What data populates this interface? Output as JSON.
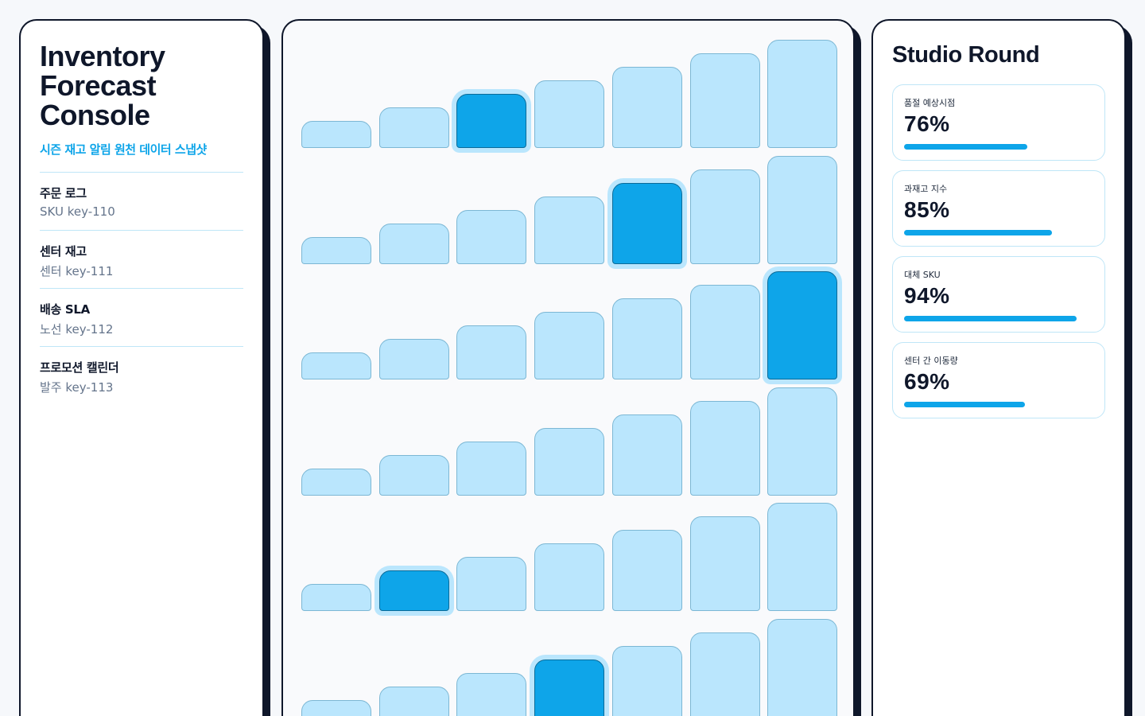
{
  "left_panel": {
    "title_lines": [
      "Inventory",
      "Forecast",
      "Console"
    ],
    "subtitle": "시즌 재고 알림 원천 데이터 스냅샷",
    "feed": [
      {
        "label": "주문 로그",
        "value": "SKU key-110"
      },
      {
        "label": "센터 재고",
        "value": "센터 key-111"
      },
      {
        "label": "배송 SLA",
        "value": "노선 key-112"
      },
      {
        "label": "프로모션 캘린더",
        "value": "발주 key-113"
      }
    ]
  },
  "grid": {
    "columns": 7,
    "rows": 6,
    "highlighted": [
      {
        "row": 0,
        "col": 2
      },
      {
        "row": 1,
        "col": 4
      },
      {
        "row": 2,
        "col": 6
      },
      {
        "row": 4,
        "col": 1
      },
      {
        "row": 5,
        "col": 3
      }
    ],
    "colors": {
      "cell": "#bae6fd",
      "highlight": "#0ea5e9"
    }
  },
  "right_panel": {
    "title": "Studio Round",
    "metrics": [
      {
        "label": "품절 예상시점",
        "value": "76%",
        "fraction": 0.65
      },
      {
        "label": "과재고 지수",
        "value": "85%",
        "fraction": 0.78
      },
      {
        "label": "대체 SKU",
        "value": "94%",
        "fraction": 0.91
      },
      {
        "label": "센터 간 이동량",
        "value": "69%",
        "fraction": 0.64
      }
    ]
  },
  "colors": {
    "accent": "#0ea5e9",
    "ink": "#0f172a",
    "border": "#bfe6f7"
  }
}
